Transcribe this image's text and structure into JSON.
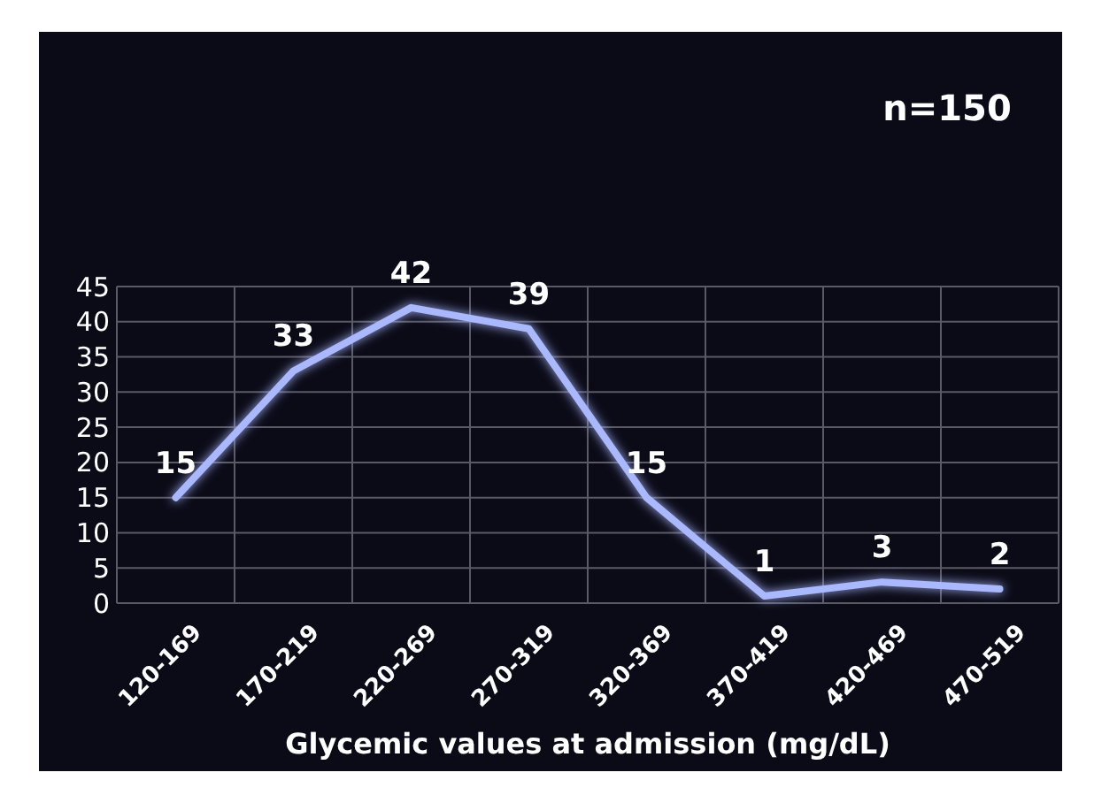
{
  "chart_data": {
    "type": "line",
    "xlabel": "Glycemic values at admission (mg/dL)",
    "categories": [
      "120-169",
      "170-219",
      "220-269",
      "270-319",
      "320-369",
      "370-419",
      "420-469",
      "470-519"
    ],
    "series": [
      {
        "color": "#aab8ff",
        "values": [
          15,
          33,
          42,
          39,
          15,
          1,
          3,
          2
        ]
      }
    ],
    "ylim": [
      0,
      45
    ],
    "yticks": [
      0,
      5,
      10,
      15,
      20,
      25,
      30,
      35,
      40,
      45
    ],
    "grid": true,
    "data_labels": true,
    "marker": "none",
    "line_style": "solid",
    "annotations": [
      "n=150"
    ]
  }
}
